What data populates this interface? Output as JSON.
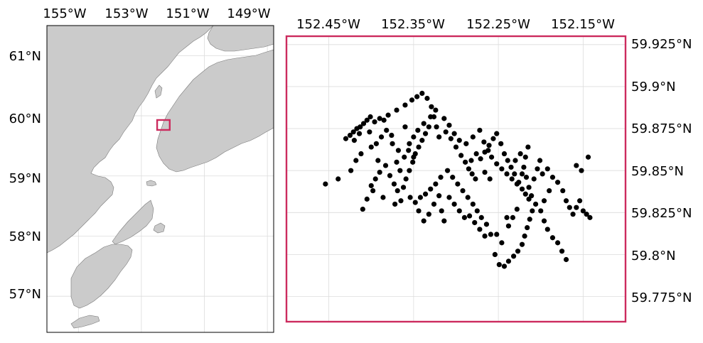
{
  "overview_map": {
    "lon_labels": [
      "155°W",
      "153°W",
      "151°W",
      "149°W"
    ],
    "lat_labels": [
      "61°N",
      "60°N",
      "59°N",
      "58°N",
      "57°N"
    ],
    "extent": {
      "lon": [
        -156.0,
        -148.8
      ],
      "lat": [
        56.4,
        61.5
      ]
    },
    "box_extent": {
      "lon": [
        -152.5,
        -152.1
      ],
      "lat": [
        59.765,
        59.93
      ]
    },
    "box_color": "#cc2b5e",
    "land_color": "#cbcbcb"
  },
  "detail_map": {
    "lon_labels": [
      "152.45°W",
      "152.35°W",
      "152.25°W",
      "152.15°W"
    ],
    "lat_labels": [
      "59.925°N",
      "59.9°N",
      "59.875°N",
      "59.85°N",
      "59.825°N",
      "59.8°N",
      "59.775°N"
    ],
    "extent": {
      "lon": [
        -152.5,
        -152.1
      ],
      "lat": [
        59.76,
        59.93
      ]
    },
    "frame_color": "#cc2b5e",
    "point_color": "#000000",
    "points": [
      [
        -152.454,
        59.842
      ],
      [
        -152.439,
        59.845
      ],
      [
        -152.43,
        59.869
      ],
      [
        -152.425,
        59.871
      ],
      [
        -152.421,
        59.873
      ],
      [
        -152.417,
        59.875
      ],
      [
        -152.413,
        59.876
      ],
      [
        -152.409,
        59.878
      ],
      [
        -152.405,
        59.88
      ],
      [
        -152.401,
        59.882
      ],
      [
        -152.396,
        59.879
      ],
      [
        -152.39,
        59.881
      ],
      [
        -152.385,
        59.88
      ],
      [
        -152.38,
        59.883
      ],
      [
        -152.37,
        59.886
      ],
      [
        -152.36,
        59.889
      ],
      [
        -152.352,
        59.892
      ],
      [
        -152.346,
        59.894
      ],
      [
        -152.34,
        59.896
      ],
      [
        -152.334,
        59.893
      ],
      [
        -152.329,
        59.888
      ],
      [
        -152.326,
        59.882
      ],
      [
        -152.323,
        59.876
      ],
      [
        -152.32,
        59.87
      ],
      [
        -152.424,
        59.85
      ],
      [
        -152.418,
        59.856
      ],
      [
        -152.412,
        59.86
      ],
      [
        -152.4,
        59.864
      ],
      [
        -152.392,
        59.856
      ],
      [
        -152.383,
        59.853
      ],
      [
        -152.378,
        59.847
      ],
      [
        -152.373,
        59.842
      ],
      [
        -152.369,
        59.838
      ],
      [
        -152.365,
        59.832
      ],
      [
        -152.362,
        59.84
      ],
      [
        -152.359,
        59.845
      ],
      [
        -152.355,
        59.85
      ],
      [
        -152.351,
        59.855
      ],
      [
        -152.348,
        59.86
      ],
      [
        -152.344,
        59.864
      ],
      [
        -152.34,
        59.868
      ],
      [
        -152.336,
        59.872
      ],
      [
        -152.332,
        59.876
      ],
      [
        -152.312,
        59.873
      ],
      [
        -152.306,
        59.869
      ],
      [
        -152.3,
        59.864
      ],
      [
        -152.294,
        59.859
      ],
      [
        -152.289,
        59.855
      ],
      [
        -152.285,
        59.851
      ],
      [
        -152.281,
        59.848
      ],
      [
        -152.277,
        59.845
      ],
      [
        -152.271,
        59.857
      ],
      [
        -152.266,
        59.861
      ],
      [
        -152.261,
        59.865
      ],
      [
        -152.256,
        59.869
      ],
      [
        -152.252,
        59.872
      ],
      [
        -152.247,
        59.866
      ],
      [
        -152.243,
        59.86
      ],
      [
        -152.239,
        59.856
      ],
      [
        -152.235,
        59.852
      ],
      [
        -152.231,
        59.848
      ],
      [
        -152.226,
        59.843
      ],
      [
        -152.222,
        59.839
      ],
      [
        -152.218,
        59.836
      ],
      [
        -152.214,
        59.833
      ],
      [
        -152.215,
        59.864
      ],
      [
        -152.218,
        59.858
      ],
      [
        -152.22,
        59.852
      ],
      [
        -152.217,
        59.846
      ],
      [
        -152.214,
        59.84
      ],
      [
        -152.211,
        59.835
      ],
      [
        -152.208,
        59.845
      ],
      [
        -152.204,
        59.851
      ],
      [
        -152.201,
        59.856
      ],
      [
        -152.206,
        59.83
      ],
      [
        -152.21,
        59.826
      ],
      [
        -152.213,
        59.821
      ],
      [
        -152.216,
        59.816
      ],
      [
        -152.219,
        59.811
      ],
      [
        -152.222,
        59.806
      ],
      [
        -152.227,
        59.802
      ],
      [
        -152.232,
        59.799
      ],
      [
        -152.238,
        59.796
      ],
      [
        -152.243,
        59.793
      ],
      [
        -152.249,
        59.794
      ],
      [
        -152.254,
        59.8
      ],
      [
        -152.259,
        59.812
      ],
      [
        -152.264,
        59.818
      ],
      [
        -152.27,
        59.822
      ],
      [
        -152.275,
        59.826
      ],
      [
        -152.28,
        59.83
      ],
      [
        -152.286,
        59.834
      ],
      [
        -152.292,
        59.838
      ],
      [
        -152.298,
        59.842
      ],
      [
        -152.304,
        59.846
      ],
      [
        -152.31,
        59.85
      ],
      [
        -152.318,
        59.846
      ],
      [
        -152.324,
        59.842
      ],
      [
        -152.33,
        59.839
      ],
      [
        -152.336,
        59.836
      ],
      [
        -152.342,
        59.834
      ],
      [
        -152.348,
        59.831
      ],
      [
        -152.354,
        59.834
      ],
      [
        -152.372,
        59.83
      ],
      [
        -152.386,
        59.834
      ],
      [
        -152.398,
        59.838
      ],
      [
        -152.41,
        59.827
      ],
      [
        -152.405,
        59.833
      ],
      [
        -152.4,
        59.841
      ],
      [
        -152.395,
        59.845
      ],
      [
        -152.39,
        59.849
      ],
      [
        -152.375,
        59.866
      ],
      [
        -152.368,
        59.862
      ],
      [
        -152.361,
        59.858
      ],
      [
        -152.355,
        59.866
      ],
      [
        -152.35,
        59.87
      ],
      [
        -152.345,
        59.874
      ],
      [
        -152.338,
        59.878
      ],
      [
        -152.33,
        59.882
      ],
      [
        -152.324,
        59.886
      ],
      [
        -152.314,
        59.881
      ],
      [
        -152.308,
        59.877
      ],
      [
        -152.302,
        59.872
      ],
      [
        -152.296,
        59.868
      ],
      [
        -152.288,
        59.866
      ],
      [
        -152.28,
        59.87
      ],
      [
        -152.272,
        59.874
      ],
      [
        -152.267,
        59.867
      ],
      [
        -152.262,
        59.862
      ],
      [
        -152.258,
        59.858
      ],
      [
        -152.252,
        59.854
      ],
      [
        -152.246,
        59.851
      ],
      [
        -152.24,
        59.848
      ],
      [
        -152.234,
        59.845
      ],
      [
        -152.228,
        59.842
      ],
      [
        -152.222,
        59.848
      ],
      [
        -152.198,
        59.848
      ],
      [
        -152.192,
        59.851
      ],
      [
        -152.186,
        59.846
      ],
      [
        -152.18,
        59.843
      ],
      [
        -152.174,
        59.838
      ],
      [
        -152.17,
        59.832
      ],
      [
        -152.166,
        59.828
      ],
      [
        -152.162,
        59.824
      ],
      [
        -152.158,
        59.828
      ],
      [
        -152.154,
        59.832
      ],
      [
        -152.15,
        59.826
      ],
      [
        -152.146,
        59.824
      ],
      [
        -152.142,
        59.822
      ],
      [
        -152.152,
        59.85
      ],
      [
        -152.158,
        59.853
      ],
      [
        -152.144,
        59.858
      ],
      [
        -152.19,
        59.838
      ],
      [
        -152.196,
        59.832
      ],
      [
        -152.2,
        59.826
      ],
      [
        -152.196,
        59.82
      ],
      [
        -152.192,
        59.815
      ],
      [
        -152.186,
        59.81
      ],
      [
        -152.18,
        59.807
      ],
      [
        -152.175,
        59.802
      ],
      [
        -152.17,
        59.797
      ],
      [
        -152.228,
        59.827
      ],
      [
        -152.233,
        59.822
      ],
      [
        -152.238,
        59.817
      ],
      [
        -152.29,
        59.822
      ],
      [
        -152.296,
        59.826
      ],
      [
        -152.302,
        59.83
      ],
      [
        -152.308,
        59.834
      ],
      [
        -152.314,
        59.82
      ],
      [
        -152.317,
        59.826
      ],
      [
        -152.32,
        59.835
      ],
      [
        -152.326,
        59.83
      ],
      [
        -152.332,
        59.824
      ],
      [
        -152.338,
        59.82
      ],
      [
        -152.344,
        59.826
      ],
      [
        -152.35,
        59.858
      ],
      [
        -152.356,
        59.862
      ],
      [
        -152.376,
        59.871
      ],
      [
        -152.382,
        59.874
      ],
      [
        -152.388,
        59.87
      ],
      [
        -152.394,
        59.866
      ],
      [
        -152.414,
        59.872
      ],
      [
        -152.42,
        59.868
      ],
      [
        -152.402,
        59.873
      ],
      [
        -152.366,
        59.85
      ],
      [
        -152.37,
        59.855
      ],
      [
        -152.36,
        59.876
      ],
      [
        -152.266,
        59.811
      ],
      [
        -152.272,
        59.815
      ],
      [
        -152.278,
        59.819
      ],
      [
        -152.284,
        59.823
      ],
      [
        -152.246,
        59.807
      ],
      [
        -152.252,
        59.812
      ],
      [
        -152.24,
        59.822
      ],
      [
        -152.26,
        59.845
      ],
      [
        -152.266,
        59.849
      ],
      [
        -152.282,
        59.856
      ],
      [
        -152.276,
        59.86
      ],
      [
        -152.23,
        59.856
      ],
      [
        -152.224,
        59.86
      ]
    ]
  }
}
